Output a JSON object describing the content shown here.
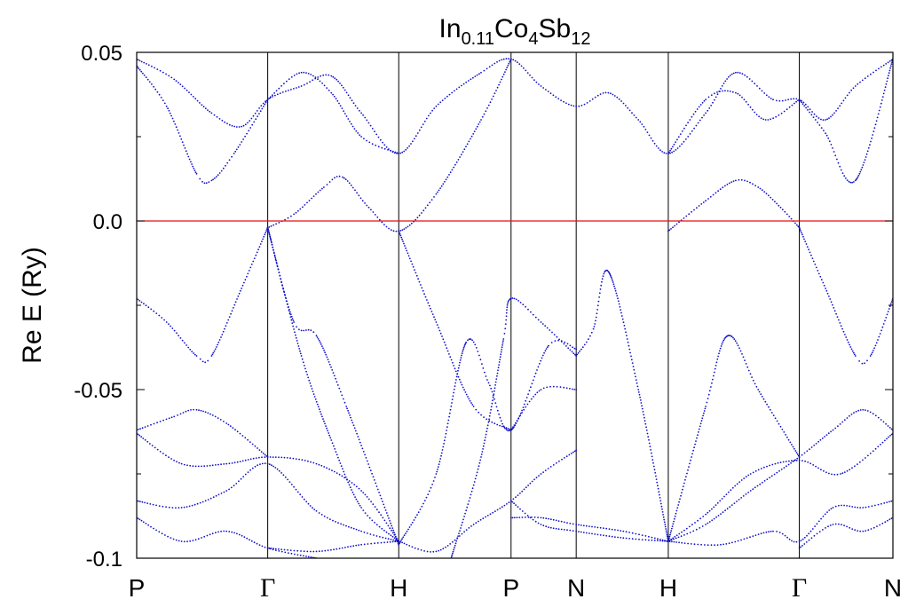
{
  "chart_data": {
    "type": "scatter",
    "title": {
      "base1": "In",
      "sub1": "0.11",
      "base2": "Co",
      "sub2": "4",
      "base3": "Sb",
      "sub3": "12"
    },
    "ylabel": "Re E (Ry)",
    "ylim": [
      -0.1,
      0.05
    ],
    "yticks": [
      {
        "value": 0.05,
        "label": "0.05"
      },
      {
        "value": 0.0,
        "label": "0.0"
      },
      {
        "value": -0.05,
        "label": "-0.05"
      },
      {
        "value": -0.1,
        "label": "-0.1"
      }
    ],
    "xlim": [
      0,
      10.1
    ],
    "kpoints": [
      {
        "x": 0.0,
        "label": "P"
      },
      {
        "x": 1.75,
        "label": "Γ"
      },
      {
        "x": 3.5,
        "label": "H"
      },
      {
        "x": 5.0,
        "label": "P"
      },
      {
        "x": 5.87,
        "label": "N"
      },
      {
        "x": 7.1,
        "label": "H"
      },
      {
        "x": 8.85,
        "label": "Γ"
      },
      {
        "x": 10.1,
        "label": "N"
      }
    ],
    "fermi_level": 0.0,
    "colors": {
      "bands": "#1010c8",
      "fermi": "#e01010",
      "kpoint_lines": "#000000",
      "frame": "#000000"
    },
    "series": [
      {
        "values": [
          [
            0.0,
            0.048
          ],
          [
            0.5,
            0.042
          ],
          [
            1.0,
            0.032
          ],
          [
            1.4,
            0.028
          ],
          [
            1.75,
            0.036
          ],
          [
            2.2,
            0.04
          ],
          [
            2.6,
            0.043
          ],
          [
            3.0,
            0.032
          ],
          [
            3.5,
            0.02
          ],
          [
            4.0,
            0.034
          ],
          [
            4.6,
            0.044
          ],
          [
            5.0,
            0.048
          ],
          [
            5.4,
            0.04
          ],
          [
            5.87,
            0.034
          ],
          [
            6.3,
            0.038
          ],
          [
            6.7,
            0.03
          ],
          [
            7.1,
            0.02
          ],
          [
            7.6,
            0.032
          ],
          [
            8.0,
            0.044
          ],
          [
            8.5,
            0.036
          ],
          [
            8.85,
            0.036
          ],
          [
            9.2,
            0.03
          ],
          [
            9.6,
            0.04
          ],
          [
            10.1,
            0.048
          ]
        ]
      },
      {
        "values": [
          [
            0.0,
            0.046
          ],
          [
            0.4,
            0.034
          ],
          [
            0.8,
            0.014
          ],
          [
            1.0,
            0.012
          ],
          [
            1.3,
            0.02
          ],
          [
            1.75,
            0.036
          ]
        ]
      },
      {
        "values": [
          [
            1.75,
            -0.002
          ],
          [
            2.1,
            0.002
          ],
          [
            2.5,
            0.01
          ],
          [
            2.75,
            0.013
          ],
          [
            3.1,
            0.004
          ],
          [
            3.5,
            -0.003
          ],
          [
            4.0,
            0.008
          ],
          [
            4.6,
            0.03
          ],
          [
            5.0,
            0.048
          ]
        ]
      },
      {
        "values": [
          [
            1.75,
            0.036
          ],
          [
            2.2,
            0.044
          ],
          [
            2.6,
            0.038
          ],
          [
            3.0,
            0.025
          ],
          [
            3.5,
            0.02
          ]
        ]
      },
      {
        "values": [
          [
            7.1,
            -0.003
          ],
          [
            7.6,
            0.006
          ],
          [
            8.0,
            0.012
          ],
          [
            8.3,
            0.01
          ],
          [
            8.6,
            0.004
          ],
          [
            8.85,
            -0.002
          ]
        ]
      },
      {
        "values": [
          [
            7.1,
            0.02
          ],
          [
            7.6,
            0.036
          ],
          [
            8.0,
            0.038
          ],
          [
            8.4,
            0.03
          ],
          [
            8.85,
            0.036
          ]
        ]
      },
      {
        "values": [
          [
            8.85,
            0.036
          ],
          [
            9.2,
            0.026
          ],
          [
            9.6,
            0.012
          ],
          [
            10.1,
            0.048
          ]
        ]
      },
      {
        "values": [
          [
            0.0,
            -0.023
          ],
          [
            0.4,
            -0.03
          ],
          [
            0.8,
            -0.04
          ],
          [
            1.0,
            -0.04
          ],
          [
            1.4,
            -0.02
          ],
          [
            1.75,
            -0.002
          ]
        ]
      },
      {
        "values": [
          [
            8.85,
            -0.002
          ],
          [
            9.2,
            -0.02
          ],
          [
            9.6,
            -0.04
          ],
          [
            9.8,
            -0.04
          ],
          [
            10.1,
            -0.023
          ]
        ]
      },
      {
        "values": [
          [
            1.75,
            -0.002
          ],
          [
            2.2,
            -0.04
          ],
          [
            2.6,
            -0.065
          ],
          [
            3.0,
            -0.085
          ],
          [
            3.5,
            -0.095
          ]
        ]
      },
      {
        "values": [
          [
            1.75,
            -0.002
          ],
          [
            2.1,
            -0.03
          ],
          [
            2.4,
            -0.034
          ],
          [
            2.8,
            -0.055
          ],
          [
            3.5,
            -0.096
          ]
        ]
      },
      {
        "values": [
          [
            3.5,
            -0.003
          ],
          [
            4.0,
            -0.03
          ],
          [
            4.5,
            -0.055
          ],
          [
            5.0,
            -0.062
          ]
        ]
      },
      {
        "values": [
          [
            4.2,
            -0.1
          ],
          [
            4.6,
            -0.07
          ],
          [
            4.9,
            -0.035
          ],
          [
            5.0,
            -0.023
          ],
          [
            5.4,
            -0.03
          ],
          [
            5.87,
            -0.04
          ]
        ]
      },
      {
        "values": [
          [
            3.5,
            -0.096
          ],
          [
            4.0,
            -0.075
          ],
          [
            4.4,
            -0.036
          ],
          [
            4.7,
            -0.048
          ],
          [
            5.0,
            -0.062
          ],
          [
            5.5,
            -0.037
          ],
          [
            5.87,
            -0.038
          ]
        ]
      },
      {
        "values": [
          [
            5.87,
            -0.04
          ],
          [
            6.1,
            -0.032
          ],
          [
            6.3,
            -0.015
          ],
          [
            6.7,
            -0.05
          ],
          [
            7.1,
            -0.095
          ]
        ]
      },
      {
        "values": [
          [
            7.1,
            -0.095
          ],
          [
            7.6,
            -0.055
          ],
          [
            7.9,
            -0.034
          ],
          [
            8.3,
            -0.05
          ],
          [
            8.85,
            -0.07
          ]
        ]
      },
      {
        "values": [
          [
            0.0,
            -0.062
          ],
          [
            0.5,
            -0.058
          ],
          [
            0.8,
            -0.056
          ],
          [
            1.2,
            -0.06
          ],
          [
            1.75,
            -0.07
          ]
        ]
      },
      {
        "values": [
          [
            0.0,
            -0.063
          ],
          [
            0.6,
            -0.072
          ],
          [
            1.2,
            -0.072
          ],
          [
            1.75,
            -0.07
          ],
          [
            2.4,
            -0.072
          ],
          [
            3.0,
            -0.08
          ],
          [
            3.5,
            -0.095
          ]
        ]
      },
      {
        "values": [
          [
            0.0,
            -0.083
          ],
          [
            0.6,
            -0.085
          ],
          [
            1.2,
            -0.08
          ],
          [
            1.75,
            -0.072
          ],
          [
            2.4,
            -0.086
          ],
          [
            3.0,
            -0.092
          ],
          [
            3.5,
            -0.095
          ]
        ]
      },
      {
        "values": [
          [
            0.0,
            -0.088
          ],
          [
            0.6,
            -0.095
          ],
          [
            1.2,
            -0.092
          ],
          [
            1.75,
            -0.097
          ],
          [
            2.4,
            -0.1
          ]
        ]
      },
      {
        "values": [
          [
            1.75,
            -0.097
          ],
          [
            2.4,
            -0.098
          ],
          [
            3.0,
            -0.096
          ],
          [
            3.5,
            -0.095
          ]
        ]
      },
      {
        "values": [
          [
            3.5,
            -0.095
          ],
          [
            4.0,
            -0.098
          ],
          [
            4.5,
            -0.09
          ],
          [
            5.0,
            -0.083
          ],
          [
            5.4,
            -0.075
          ],
          [
            5.87,
            -0.068
          ]
        ]
      },
      {
        "values": [
          [
            5.0,
            -0.083
          ],
          [
            5.4,
            -0.09
          ],
          [
            5.87,
            -0.092
          ],
          [
            6.5,
            -0.094
          ],
          [
            7.1,
            -0.095
          ]
        ]
      },
      {
        "values": [
          [
            5.0,
            -0.088
          ],
          [
            5.4,
            -0.088
          ],
          [
            5.87,
            -0.09
          ],
          [
            6.5,
            -0.092
          ],
          [
            7.1,
            -0.095
          ]
        ]
      },
      {
        "values": [
          [
            5.0,
            -0.062
          ],
          [
            5.4,
            -0.05
          ],
          [
            5.87,
            -0.05
          ]
        ]
      },
      {
        "values": [
          [
            7.1,
            -0.095
          ],
          [
            7.6,
            -0.09
          ],
          [
            8.2,
            -0.08
          ],
          [
            8.85,
            -0.07
          ],
          [
            9.3,
            -0.062
          ],
          [
            9.7,
            -0.056
          ],
          [
            10.1,
            -0.062
          ]
        ]
      },
      {
        "values": [
          [
            7.1,
            -0.095
          ],
          [
            7.6,
            -0.087
          ],
          [
            8.2,
            -0.075
          ],
          [
            8.85,
            -0.071
          ],
          [
            9.4,
            -0.075
          ],
          [
            10.1,
            -0.063
          ]
        ]
      },
      {
        "values": [
          [
            7.1,
            -0.095
          ],
          [
            7.8,
            -0.096
          ],
          [
            8.5,
            -0.092
          ],
          [
            8.85,
            -0.095
          ],
          [
            9.3,
            -0.085
          ],
          [
            9.7,
            -0.085
          ],
          [
            10.1,
            -0.083
          ]
        ]
      },
      {
        "values": [
          [
            8.85,
            -0.097
          ],
          [
            9.3,
            -0.09
          ],
          [
            9.7,
            -0.092
          ],
          [
            10.1,
            -0.088
          ]
        ]
      }
    ]
  }
}
